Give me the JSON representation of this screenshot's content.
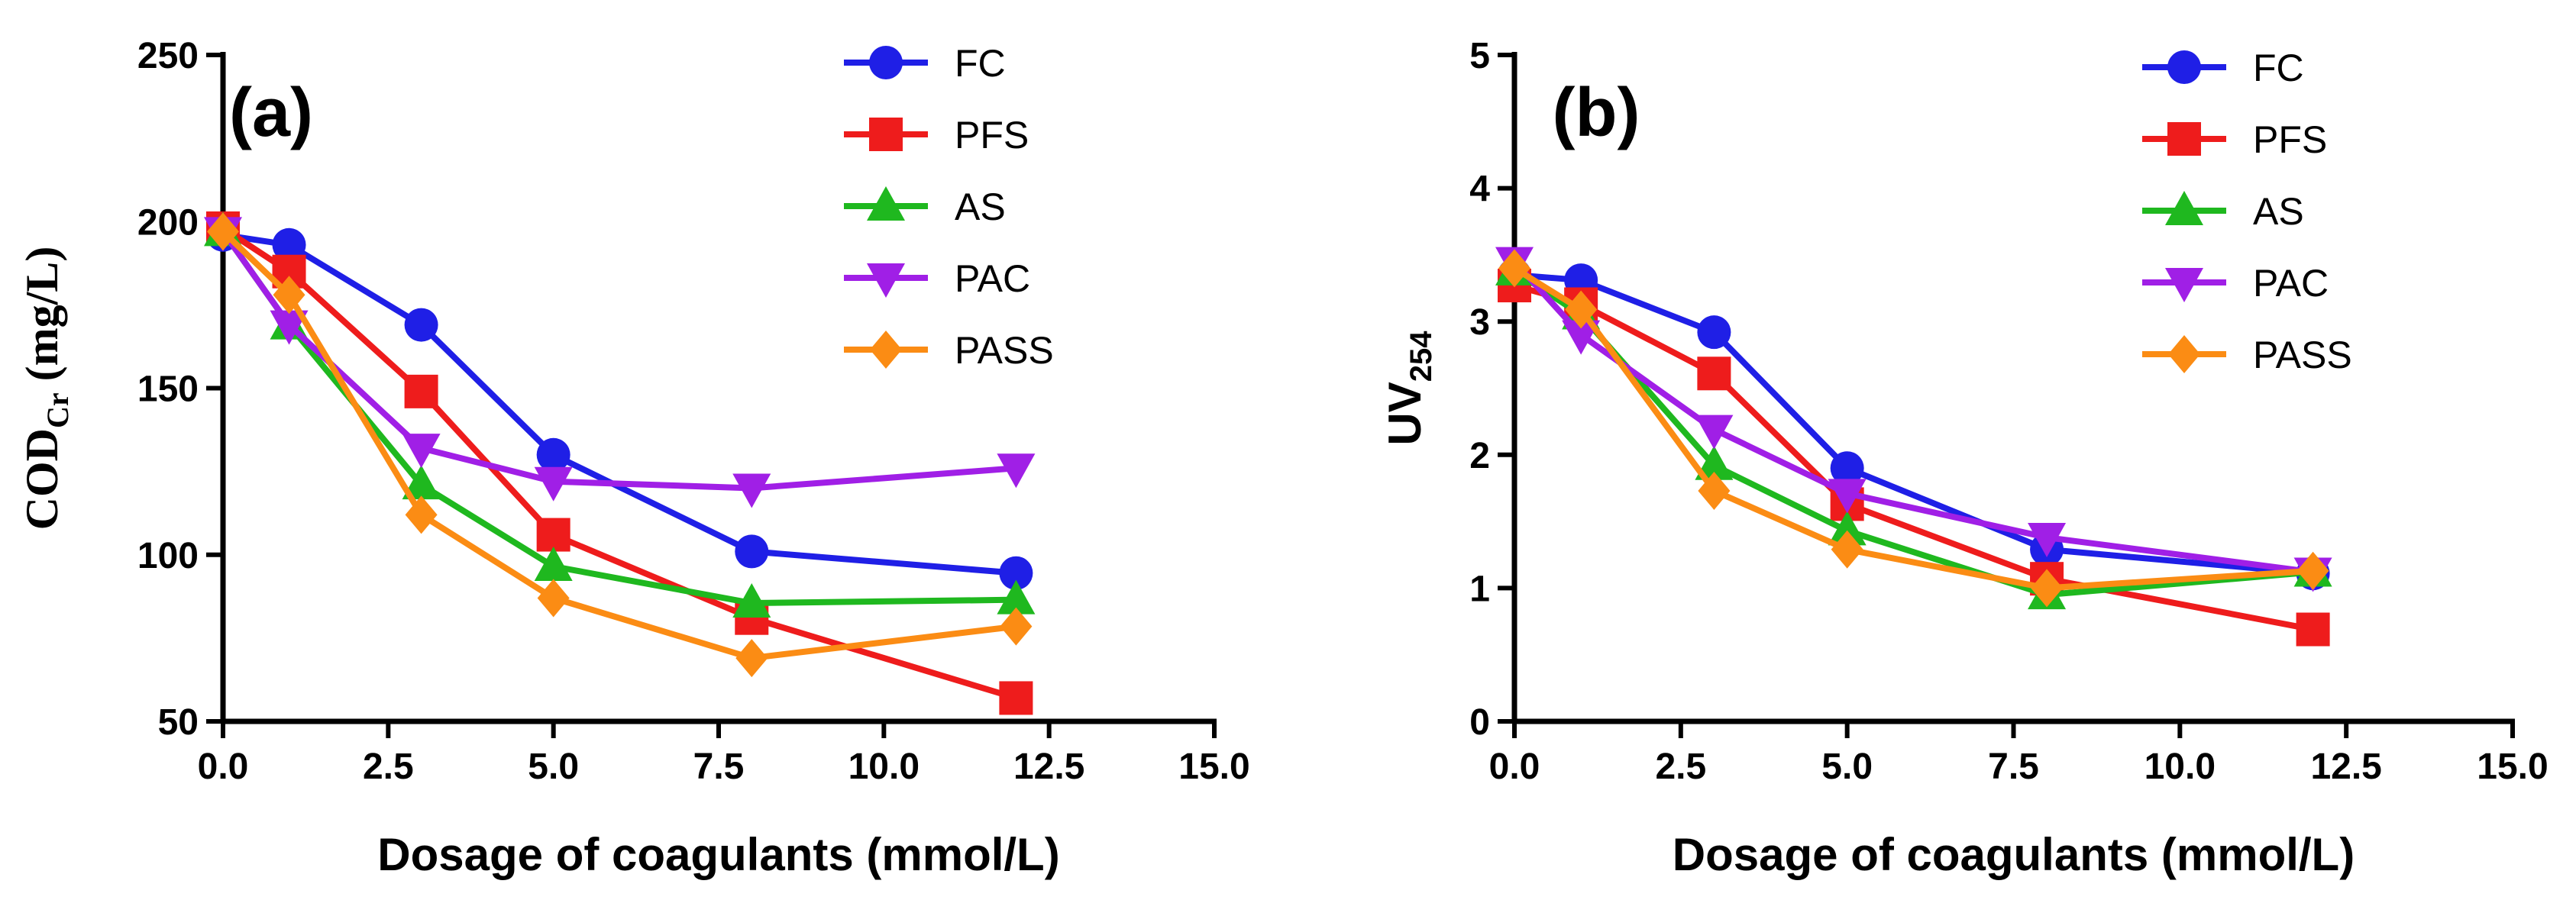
{
  "chart_data": [
    {
      "type": "line",
      "panel": "(a)",
      "xlabel": "Dosage of coagulants (mmol/L)",
      "ylabel": {
        "main": "COD",
        "sub": "Cr",
        "unit": " (mg/L)"
      },
      "xlim": [
        0,
        15
      ],
      "ylim": [
        50,
        250
      ],
      "xticks": [
        0,
        2.5,
        5,
        7.5,
        10,
        12.5,
        15
      ],
      "xtick_labels": [
        "0.0",
        "2.5",
        "5.0",
        "7.5",
        "10.0",
        "12.5",
        "15.0"
      ],
      "yticks": [
        50,
        100,
        150,
        200,
        250
      ],
      "ytick_labels": [
        "50",
        "100",
        "150",
        "200",
        "250"
      ],
      "legend_position": "top-right",
      "x": [
        0,
        1,
        3,
        5,
        8,
        12
      ],
      "series": [
        {
          "name": "FC",
          "color": "#1f1fe6",
          "marker": "circle",
          "values": [
            196,
            193,
            169,
            130,
            101,
            94.5
          ]
        },
        {
          "name": "PFS",
          "color": "#ee1c1c",
          "marker": "square",
          "values": [
            198,
            185,
            149,
            106,
            81,
            57
          ]
        },
        {
          "name": "AS",
          "color": "#1fb81f",
          "marker": "triangle-up",
          "values": [
            197,
            169,
            121,
            96.5,
            85.5,
            86.5
          ]
        },
        {
          "name": "PAC",
          "color": "#a01fe6",
          "marker": "triangle-down",
          "values": [
            197,
            169,
            132,
            122,
            120,
            126
          ]
        },
        {
          "name": "PASS",
          "color": "#fb8c14",
          "marker": "diamond",
          "values": [
            197,
            178,
            112,
            87,
            69,
            78.5
          ]
        }
      ]
    },
    {
      "type": "line",
      "panel": "(b)",
      "xlabel": "Dosage of coagulants (mmol/L)",
      "ylabel": {
        "main": "UV",
        "sub": "254",
        "unit": ""
      },
      "xlim": [
        0,
        15
      ],
      "ylim": [
        0,
        5
      ],
      "xticks": [
        0,
        2.5,
        5,
        7.5,
        10,
        12.5,
        15
      ],
      "xtick_labels": [
        "0.0",
        "2.5",
        "5.0",
        "7.5",
        "10.0",
        "12.5",
        "15.0"
      ],
      "yticks": [
        0,
        1,
        2,
        3,
        4,
        5
      ],
      "ytick_labels": [
        "0",
        "1",
        "2",
        "3",
        "4",
        "5"
      ],
      "legend_position": "top-right",
      "x": [
        0,
        1,
        3,
        5,
        8,
        12
      ],
      "series": [
        {
          "name": "FC",
          "color": "#1f1fe6",
          "marker": "circle",
          "values": [
            3.35,
            3.31,
            2.92,
            1.9,
            1.29,
            1.11
          ]
        },
        {
          "name": "PFS",
          "color": "#ee1c1c",
          "marker": "square",
          "values": [
            3.27,
            3.13,
            2.61,
            1.63,
            1.07,
            0.69
          ]
        },
        {
          "name": "AS",
          "color": "#1fb81f",
          "marker": "triangle-up",
          "values": [
            3.38,
            3.05,
            1.92,
            1.43,
            0.95,
            1.12
          ]
        },
        {
          "name": "PAC",
          "color": "#a01fe6",
          "marker": "triangle-down",
          "values": [
            3.45,
            2.9,
            2.19,
            1.71,
            1.38,
            1.12
          ]
        },
        {
          "name": "PASS",
          "color": "#fb8c14",
          "marker": "diamond",
          "values": [
            3.4,
            3.09,
            1.73,
            1.29,
            1.0,
            1.13
          ]
        }
      ]
    }
  ]
}
